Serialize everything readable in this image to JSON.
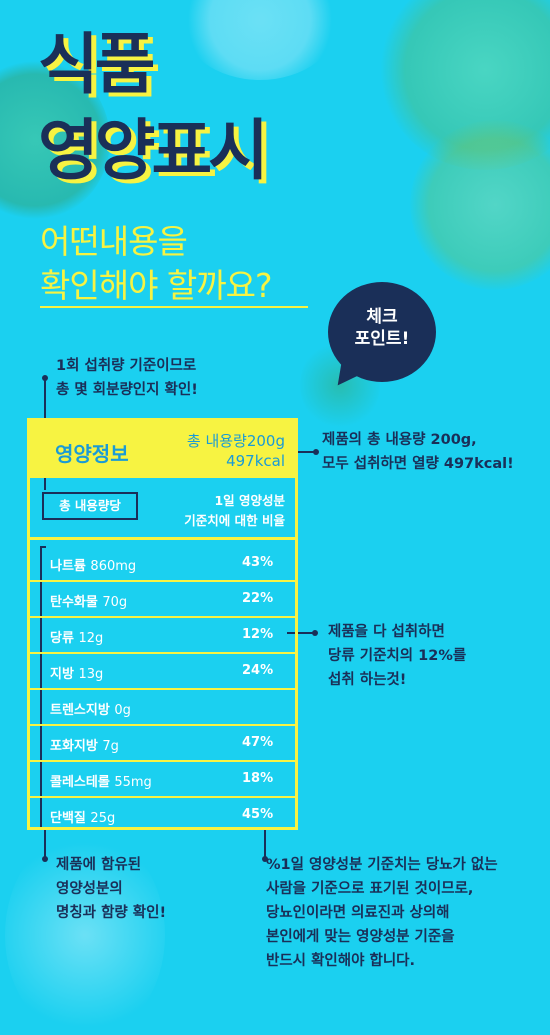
{
  "header": {
    "title_line1": "식품",
    "title_line2": "영양표시",
    "subtitle_line1": "어떤내용을",
    "subtitle_line2": "확인해야 할까요?"
  },
  "badge": {
    "line1": "체크",
    "line2": "포인트!"
  },
  "annotations": {
    "serving": {
      "line1": "1회 섭취량 기준이므로",
      "line2": "총 몇 회분량인지 확인!"
    },
    "total": {
      "line1": "제품의 총 내용량 200g,",
      "line2": "모두 섭취하면 열량 497kcal!"
    },
    "sugar": {
      "line1": "제품을 다 섭취하면",
      "line2": "당류 기준치의 12%를",
      "line3": "섭취 하는것!"
    },
    "nutrients": {
      "line1": "제품에 함유된",
      "line2": "영양성분의",
      "line3": "명칭과 함량 확인!"
    },
    "note": {
      "line1": "%1일 영양성분 기준치는 당뇨가 없는",
      "line2": "사람을 기준으로 표기된 것이므로,",
      "line3": "당뇨인이라면 의료진과 상의해",
      "line4": "본인에게 맞는 영양성분 기준을",
      "line5": "반드시 확인해야 합니다."
    }
  },
  "nutrition_table": {
    "title": "영양정보",
    "total_amount": "총 내용량200g",
    "calories": "497kcal",
    "serving_label": "총 내용량당",
    "daily_label_line1": "1일 영양성분",
    "daily_label_line2": "기준치에 대한 비율",
    "rows": [
      {
        "name": "나트륨",
        "amount": "860mg",
        "percent": "43%"
      },
      {
        "name": "탄수화물",
        "amount": "70g",
        "percent": "22%"
      },
      {
        "name": "당류",
        "amount": "12g",
        "percent": "12%"
      },
      {
        "name": "지방",
        "amount": "13g",
        "percent": "24%"
      },
      {
        "name": "트렌스지방",
        "amount": "0g",
        "percent": ""
      },
      {
        "name": "포화지방",
        "amount": "7g",
        "percent": "47%"
      },
      {
        "name": "콜레스테롤",
        "amount": "55mg",
        "percent": "18%"
      },
      {
        "name": "단백질",
        "amount": "25g",
        "percent": "45%"
      }
    ]
  },
  "colors": {
    "background": "#1bd0f0",
    "navy": "#1a2f58",
    "yellow": "#f7f342",
    "header_text": "#1a9bd6"
  }
}
